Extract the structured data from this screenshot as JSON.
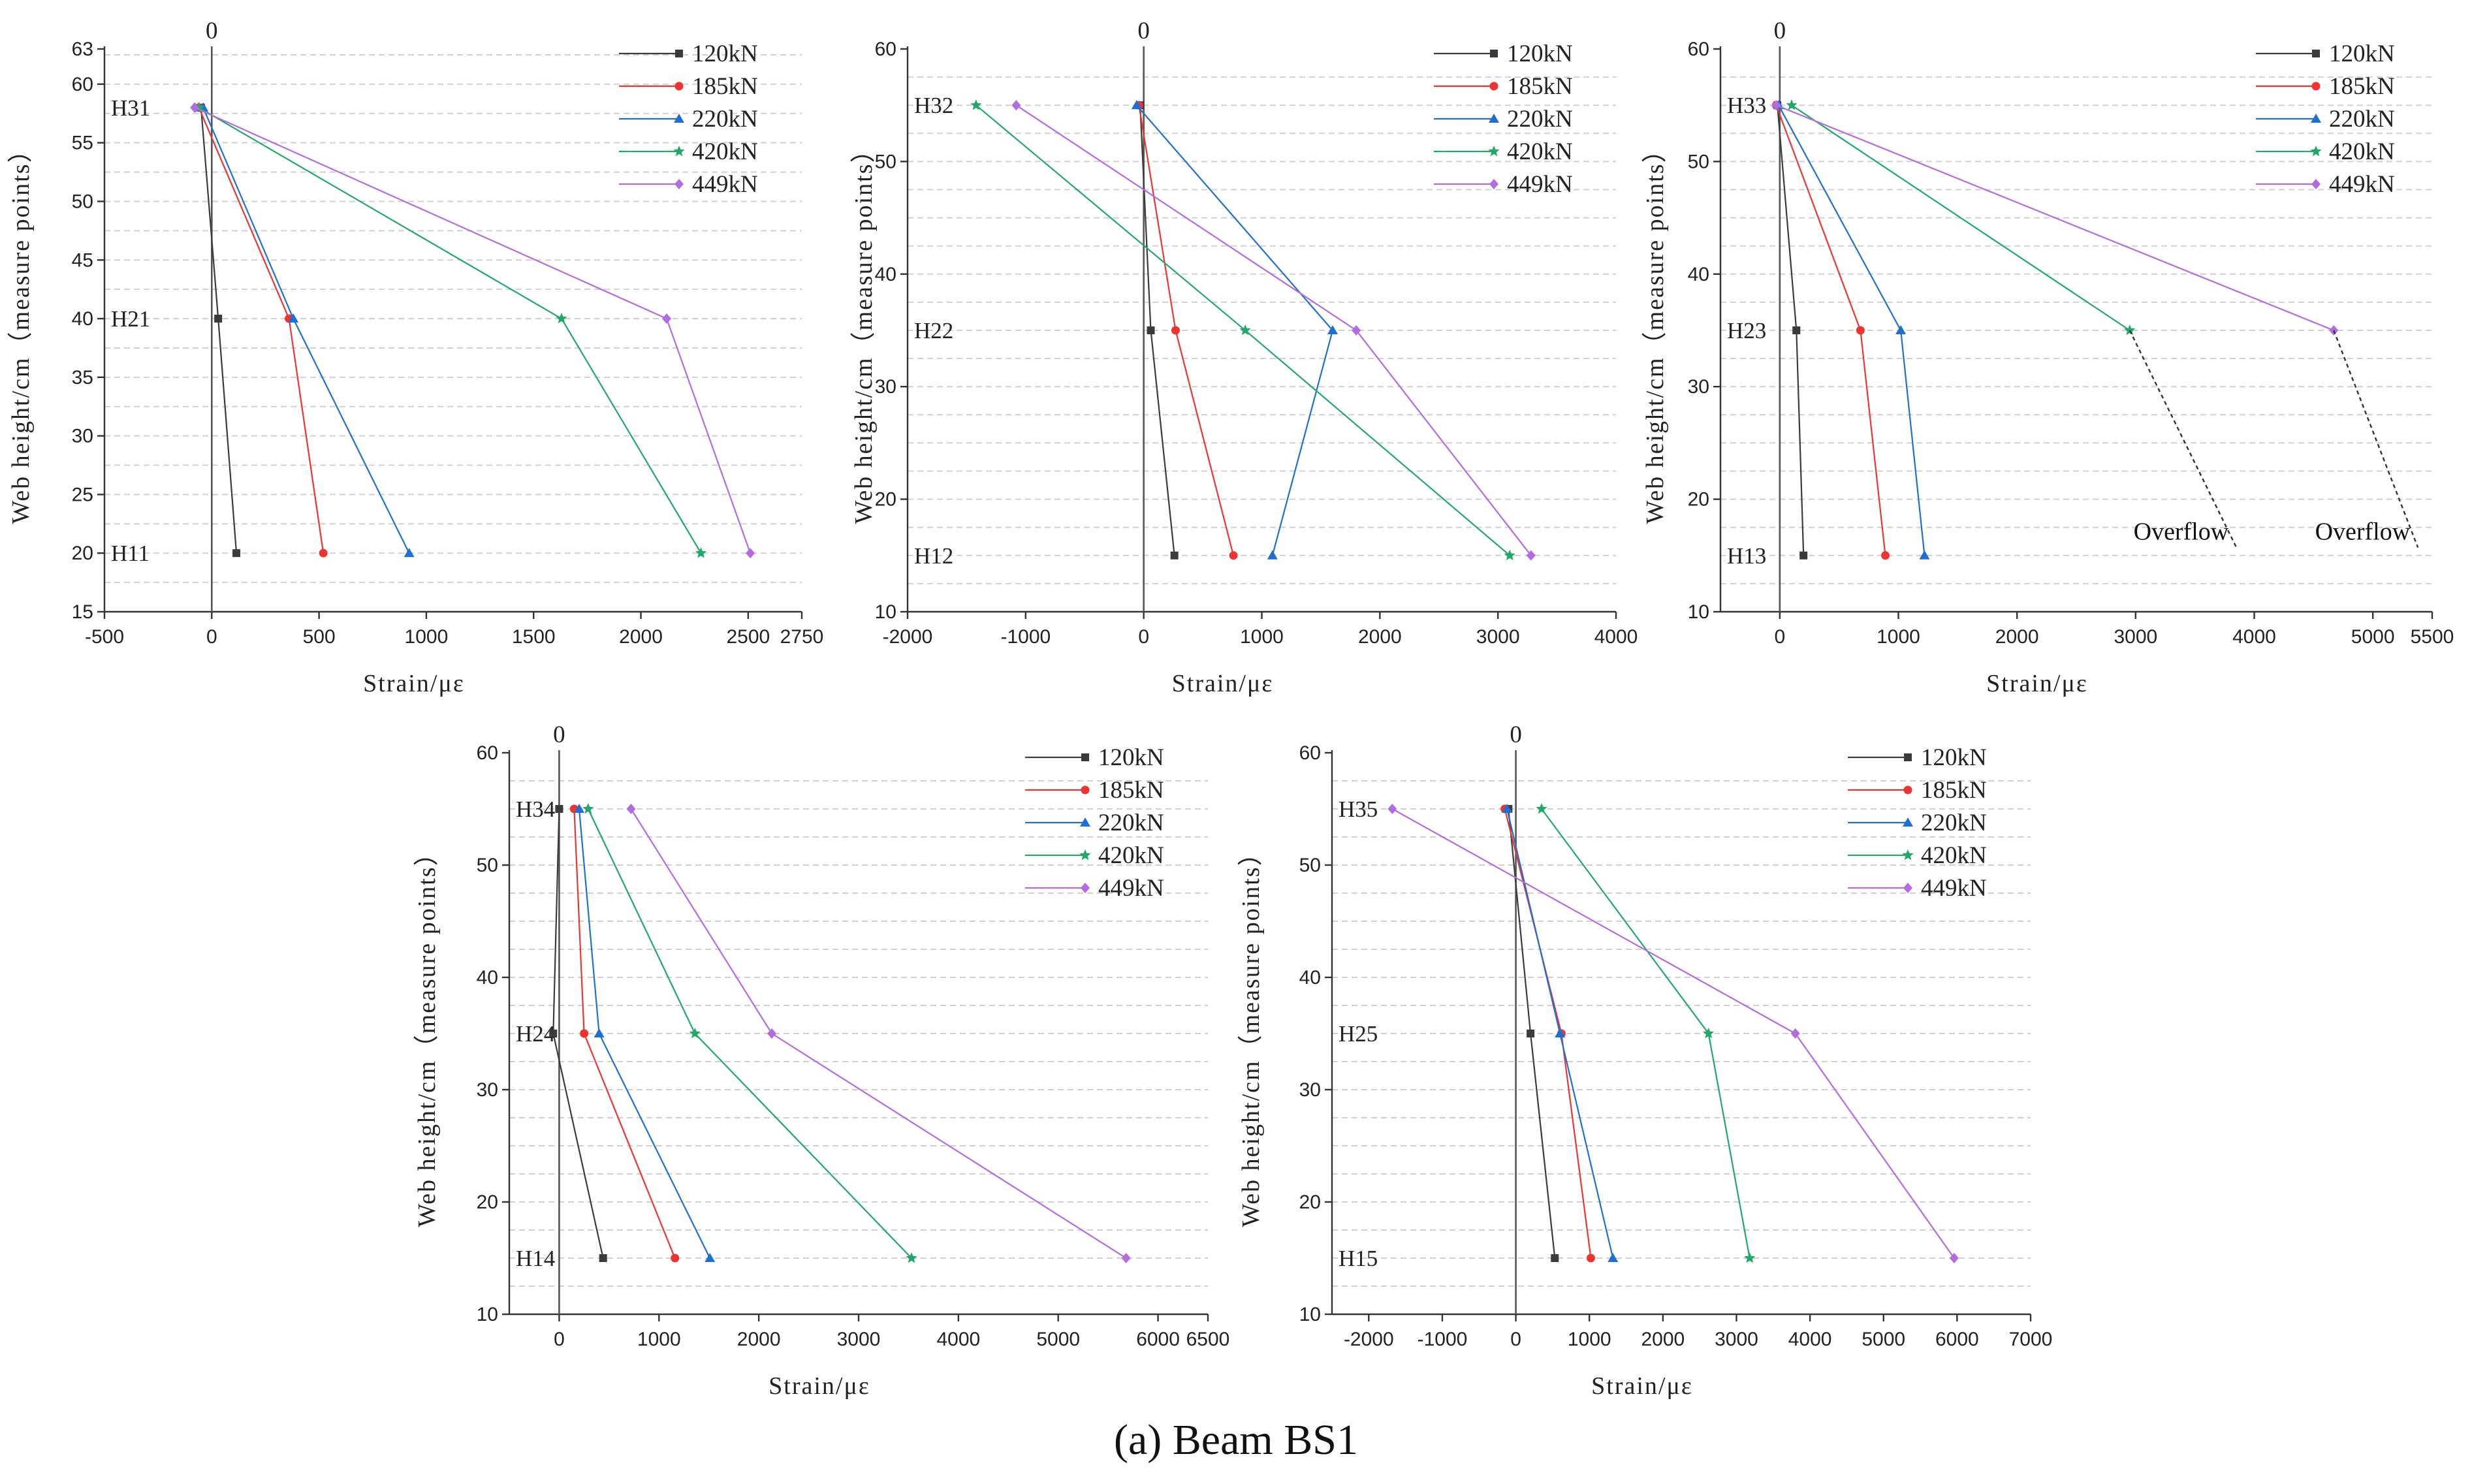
{
  "caption": {
    "tag": "(a)",
    "text": "Beam BS1"
  },
  "series_colors": {
    "120kN": "#3b3b3b",
    "185kN": "#ee3333",
    "220kN": "#1f6fd0",
    "420kN": "#20a86a",
    "449kN": "#b36be0"
  },
  "chart_data": [
    {
      "type": "line",
      "xlabel": "Strain/με",
      "ylabel": "Web height/cm（measure points）",
      "xlim": [
        -500,
        2750
      ],
      "ylim": [
        15,
        63
      ],
      "xticks": [
        -500,
        0,
        500,
        1000,
        1500,
        2000,
        2500,
        2750
      ],
      "yticks": [
        15,
        20,
        25,
        30,
        35,
        40,
        45,
        50,
        55,
        60,
        63
      ],
      "zero_label": "0",
      "point_labels": [
        {
          "text": "H31",
          "y": 58
        },
        {
          "text": "H21",
          "y": 40
        },
        {
          "text": "H11",
          "y": 20
        }
      ],
      "series": [
        {
          "name": "120kN",
          "x": [
            -50,
            30,
            115
          ],
          "y": [
            58,
            40,
            20
          ]
        },
        {
          "name": "185kN",
          "x": [
            -60,
            360,
            520
          ],
          "y": [
            58,
            40,
            20
          ]
        },
        {
          "name": "220kN",
          "x": [
            -40,
            380,
            920
          ],
          "y": [
            58,
            40,
            20
          ]
        },
        {
          "name": "420kN",
          "x": [
            -60,
            1630,
            2280
          ],
          "y": [
            58,
            40,
            20
          ]
        },
        {
          "name": "449kN",
          "x": [
            -80,
            2120,
            2510
          ],
          "y": [
            58,
            40,
            20
          ]
        }
      ],
      "overflow": [],
      "legend": "top-right"
    },
    {
      "type": "line",
      "xlabel": "Strain/με",
      "ylabel": "Web height/cm（measure points）",
      "xlim": [
        -2000,
        4000
      ],
      "ylim": [
        10,
        60
      ],
      "xticks": [
        -2000,
        -1000,
        0,
        1000,
        2000,
        3000,
        4000
      ],
      "yticks": [
        10,
        20,
        30,
        40,
        50,
        60
      ],
      "zero_label": "0",
      "point_labels": [
        {
          "text": "H32",
          "y": 55
        },
        {
          "text": "H22",
          "y": 35
        },
        {
          "text": "H12",
          "y": 15
        }
      ],
      "series": [
        {
          "name": "120kN",
          "x": [
            -30,
            60,
            260
          ],
          "y": [
            55,
            35,
            15
          ]
        },
        {
          "name": "185kN",
          "x": [
            -40,
            270,
            760
          ],
          "y": [
            55,
            35,
            15
          ]
        },
        {
          "name": "220kN",
          "x": [
            -60,
            1600,
            1090
          ],
          "y": [
            55,
            35,
            15
          ]
        },
        {
          "name": "420kN",
          "x": [
            -1420,
            860,
            3100
          ],
          "y": [
            55,
            35,
            15
          ]
        },
        {
          "name": "449kN",
          "x": [
            -1080,
            1800,
            3280
          ],
          "y": [
            55,
            35,
            15
          ]
        }
      ],
      "overflow": [],
      "legend": "top-right"
    },
    {
      "type": "line",
      "xlabel": "Strain/με",
      "ylabel": "Web height/cm（measure points）",
      "xlim": [
        -500,
        5500
      ],
      "ylim": [
        10,
        60
      ],
      "xticks": [
        0,
        1000,
        2000,
        3000,
        4000,
        5000,
        5500
      ],
      "yticks": [
        10,
        20,
        30,
        40,
        50,
        60
      ],
      "zero_label": "0",
      "point_labels": [
        {
          "text": "H33",
          "y": 55
        },
        {
          "text": "H23",
          "y": 35
        },
        {
          "text": "H13",
          "y": 15
        }
      ],
      "series": [
        {
          "name": "120kN",
          "x": [
            -20,
            140,
            200
          ],
          "y": [
            55,
            35,
            15
          ]
        },
        {
          "name": "185kN",
          "x": [
            -30,
            680,
            890
          ],
          "y": [
            55,
            35,
            15
          ]
        },
        {
          "name": "220kN",
          "x": [
            -10,
            1020,
            1220
          ],
          "y": [
            55,
            35,
            15
          ]
        },
        {
          "name": "420kN",
          "x": [
            100,
            2950
          ],
          "y": [
            55,
            35
          ]
        },
        {
          "name": "449kN",
          "x": [
            -30,
            4670
          ],
          "y": [
            55,
            35
          ]
        }
      ],
      "overflow": [
        {
          "label": "Overflow",
          "from": [
            2950,
            35
          ],
          "to": [
            3850,
            15.7
          ]
        },
        {
          "label": "Overflow",
          "from": [
            4670,
            35
          ],
          "to": [
            5380,
            15.7
          ]
        }
      ],
      "legend": "top-right"
    },
    {
      "type": "line",
      "xlabel": "Strain/με",
      "ylabel": "Web height/cm（measure points）",
      "xlim": [
        -500,
        6500
      ],
      "ylim": [
        10,
        60
      ],
      "xticks": [
        0,
        1000,
        2000,
        3000,
        4000,
        5000,
        6000,
        6500
      ],
      "yticks": [
        10,
        20,
        30,
        40,
        50,
        60
      ],
      "zero_label": "0",
      "point_labels": [
        {
          "text": "H34",
          "y": 55
        },
        {
          "text": "H24",
          "y": 35
        },
        {
          "text": "H14",
          "y": 15
        }
      ],
      "series": [
        {
          "name": "120kN",
          "x": [
            0,
            -60,
            440
          ],
          "y": [
            55,
            35,
            15
          ]
        },
        {
          "name": "185kN",
          "x": [
            150,
            250,
            1160
          ],
          "y": [
            55,
            35,
            15
          ]
        },
        {
          "name": "220kN",
          "x": [
            200,
            400,
            1510
          ],
          "y": [
            55,
            35,
            15
          ]
        },
        {
          "name": "420kN",
          "x": [
            290,
            1360,
            3530
          ],
          "y": [
            55,
            35,
            15
          ]
        },
        {
          "name": "449kN",
          "x": [
            720,
            2130,
            5680
          ],
          "y": [
            55,
            35,
            15
          ]
        }
      ],
      "overflow": [],
      "legend": "top-right"
    },
    {
      "type": "line",
      "xlabel": "Strain/με",
      "ylabel": "Web height/cm（measure points）",
      "xlim": [
        -2500,
        7000
      ],
      "ylim": [
        10,
        60
      ],
      "xticks": [
        -2000,
        -1000,
        0,
        1000,
        2000,
        3000,
        4000,
        5000,
        6000,
        7000
      ],
      "yticks": [
        10,
        20,
        30,
        40,
        50,
        60
      ],
      "zero_label": "0",
      "point_labels": [
        {
          "text": "H35",
          "y": 55
        },
        {
          "text": "H25",
          "y": 35
        },
        {
          "text": "H15",
          "y": 15
        }
      ],
      "series": [
        {
          "name": "120kN",
          "x": [
            -100,
            200,
            530
          ],
          "y": [
            55,
            35,
            15
          ]
        },
        {
          "name": "185kN",
          "x": [
            -150,
            620,
            1020
          ],
          "y": [
            55,
            35,
            15
          ]
        },
        {
          "name": "220kN",
          "x": [
            -120,
            600,
            1320
          ],
          "y": [
            55,
            35,
            15
          ]
        },
        {
          "name": "420kN",
          "x": [
            350,
            2620,
            3180
          ],
          "y": [
            55,
            35,
            15
          ]
        },
        {
          "name": "449kN",
          "x": [
            -1680,
            3800,
            5960
          ],
          "y": [
            55,
            35,
            15
          ]
        }
      ],
      "overflow": [],
      "legend": "top-right"
    }
  ]
}
